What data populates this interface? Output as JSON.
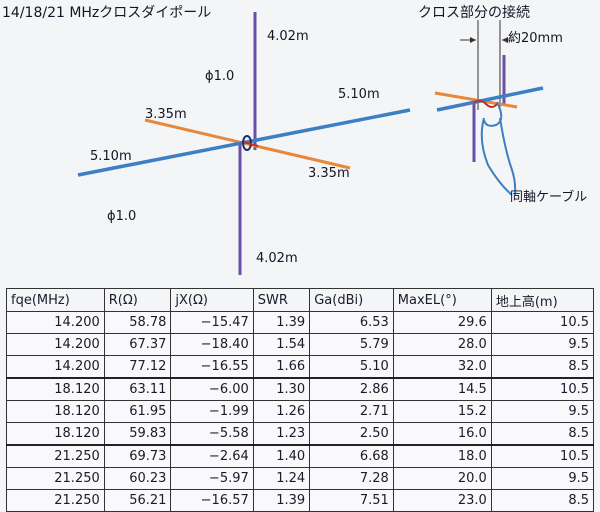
{
  "diagram": {
    "title": "14/18/21 MHzクロスダイポール",
    "inset_title": "クロス部分の接続",
    "labels": {
      "top_length": "4.02m",
      "bottom_length": "4.02m",
      "phi_top": "ϕ1.0",
      "phi_bottom": "ϕ1.0",
      "orange_left": "3.35m",
      "orange_right": "3.35m",
      "blue_left": "5.10m",
      "blue_right": "5.10m",
      "gap": "約20mm",
      "coax": "同軸ケーブル"
    },
    "colors": {
      "vertical": "#6a4fa8",
      "orange": "#e8873a",
      "blue": "#3c7fc2",
      "feed": "#c0302a"
    }
  },
  "table": {
    "headers": [
      "fqe(MHz)",
      "R(Ω)",
      "jX(Ω)",
      "SWR",
      "Ga(dBi)",
      "MaxEL(°)",
      "地上高(m)"
    ],
    "rows": [
      [
        "14.200",
        "58.78",
        "−15.47",
        "1.39",
        "6.53",
        "29.6",
        "10.5"
      ],
      [
        "14.200",
        "67.37",
        "−18.40",
        "1.54",
        "5.79",
        "28.0",
        "9.5"
      ],
      [
        "14.200",
        "77.12",
        "−16.55",
        "1.66",
        "5.10",
        "32.0",
        "8.5"
      ],
      [
        "18.120",
        "63.11",
        "−6.00",
        "1.30",
        "2.86",
        "14.5",
        "10.5"
      ],
      [
        "18.120",
        "61.95",
        "−1.99",
        "1.26",
        "2.71",
        "15.2",
        "9.5"
      ],
      [
        "18.120",
        "59.83",
        "−5.58",
        "1.23",
        "2.50",
        "16.0",
        "8.5"
      ],
      [
        "21.250",
        "69.73",
        "−2.64",
        "1.40",
        "6.68",
        "18.0",
        "10.5"
      ],
      [
        "21.250",
        "60.23",
        "−5.97",
        "1.24",
        "7.28",
        "20.0",
        "9.5"
      ],
      [
        "21.250",
        "56.21",
        "−16.57",
        "1.39",
        "7.51",
        "23.0",
        "8.5"
      ]
    ]
  }
}
